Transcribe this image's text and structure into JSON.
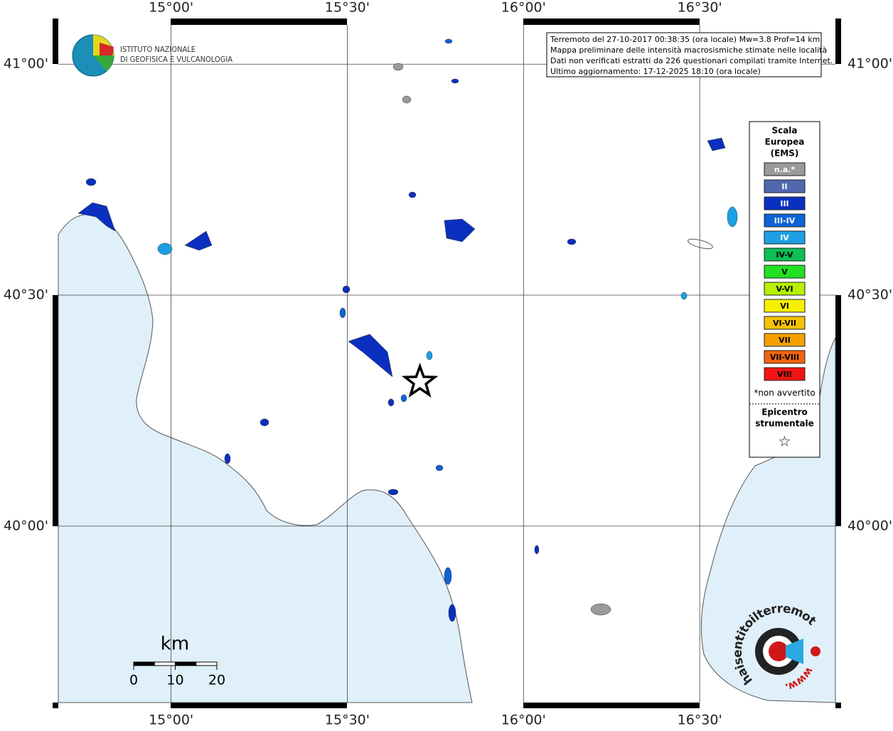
{
  "map": {
    "xlim": [
      14.68,
      16.885
    ],
    "ylim": [
      39.618,
      41.085
    ],
    "xticks": [
      {
        "value": 15,
        "label": "15°00'"
      },
      {
        "value": 15.5,
        "label": "15°30'"
      },
      {
        "value": 16,
        "label": "16°00'"
      },
      {
        "value": 16.5,
        "label": "16°30'"
      }
    ],
    "yticks": [
      {
        "value": 41,
        "label": "41°00'"
      },
      {
        "value": 40.5,
        "label": "40°30'"
      },
      {
        "value": 40,
        "label": "40°00'"
      }
    ],
    "info": [
      "Terremoto del 27-10-2017 00:38:35 (ora locale) Mw=3.8 Prof=14 km",
      "Mappa preliminare delle intensità macrosismiche stimate nelle località",
      "Dati non verificati estratti da 226 questionari compilati tramite Internet.",
      "Ultimo aggiornamento: 17-12-2025 18:10 (ora locale)"
    ],
    "institute": [
      "ISTITUTO NAZIONALE",
      "DI GEOFISICA E VULCANOLOGIA"
    ],
    "legend": {
      "title": [
        "Scala",
        "Europea",
        "(EMS)"
      ],
      "classes": [
        {
          "label": "n.a.*",
          "color": "#9a9a9a"
        },
        {
          "label": "II",
          "color": "#4f68b0"
        },
        {
          "label": "III",
          "color": "#0b2fbf"
        },
        {
          "label": "III-IV",
          "color": "#0c63d6"
        },
        {
          "label": "IV",
          "color": "#1c9fe4"
        },
        {
          "label": "IV-V",
          "color": "#0dbf55"
        },
        {
          "label": "V",
          "color": "#22e022"
        },
        {
          "label": "V-VI",
          "color": "#b6f000"
        },
        {
          "label": "VI",
          "color": "#f6f000"
        },
        {
          "label": "VI-VII",
          "color": "#f6c200"
        },
        {
          "label": "VII",
          "color": "#f6a000"
        },
        {
          "label": "VII-VIII",
          "color": "#f06410"
        },
        {
          "label": "VIII",
          "color": "#f01414"
        }
      ],
      "note": "*non avvertito",
      "epicenter_title": [
        "Epicentro",
        "strumentale"
      ],
      "epicenter_symbol": "☆"
    },
    "epicenter": {
      "lon": 15.706,
      "lat": 40.312
    },
    "scale": {
      "unit": "km",
      "ticks": [
        0,
        10,
        20
      ]
    },
    "site": {
      "name": "haisentitoilterremoto.it",
      "prefix": "www."
    }
  }
}
